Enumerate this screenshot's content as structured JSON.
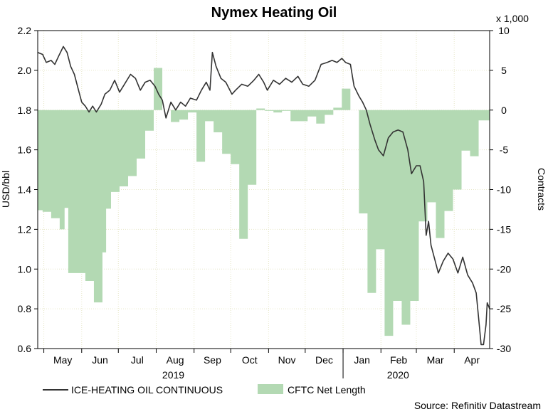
{
  "chart_data": {
    "type": "line+bar",
    "title": "Nymex Heating Oil",
    "multiplier_label": "x 1,000",
    "ylabel_left": "USD/bbl",
    "ylabel_right": "Contracts",
    "ylim_left": [
      0.6,
      2.2
    ],
    "ylim_right": [
      -30,
      10
    ],
    "yticks_left": [
      "0.6",
      "0.8",
      "1.0",
      "1.2",
      "1.4",
      "1.6",
      "1.8",
      "2.0",
      "2.2"
    ],
    "yticks_right": [
      "-30",
      "-25",
      "-20",
      "-15",
      "-10",
      "-5",
      "0",
      "5",
      "10"
    ],
    "x_range": [
      "2019-04-26",
      "2020-04-30"
    ],
    "month_labels": [
      {
        "label": "May",
        "date": "2019-05-01"
      },
      {
        "label": "Jun",
        "date": "2019-06-01"
      },
      {
        "label": "Jul",
        "date": "2019-07-01"
      },
      {
        "label": "Aug",
        "date": "2019-08-01"
      },
      {
        "label": "Sep",
        "date": "2019-09-01"
      },
      {
        "label": "Oct",
        "date": "2019-10-01"
      },
      {
        "label": "Nov",
        "date": "2019-11-01"
      },
      {
        "label": "Dec",
        "date": "2019-12-01"
      },
      {
        "label": "Jan",
        "date": "2020-01-01"
      },
      {
        "label": "Feb",
        "date": "2020-02-01"
      },
      {
        "label": "Mar",
        "date": "2020-03-01"
      },
      {
        "label": "Apr",
        "date": "2020-04-01"
      }
    ],
    "year_labels": [
      {
        "label": "2019",
        "date": "2019-08-15"
      },
      {
        "label": "2020",
        "date": "2020-02-15"
      }
    ],
    "grid": true,
    "legend_position": "bottom",
    "source": "Source: Refinitiv Datastream",
    "series": [
      {
        "name": "CFTC Net Length",
        "type": "area-step",
        "axis": "right",
        "color": "#b3d9b3",
        "points": [
          [
            "2019-04-26",
            -12.6
          ],
          [
            "2019-04-30",
            -12.8
          ],
          [
            "2019-05-07",
            -13.6
          ],
          [
            "2019-05-14",
            -15
          ],
          [
            "2019-05-18",
            -12.3
          ],
          [
            "2019-05-21",
            -20.5
          ],
          [
            "2019-05-28",
            -20.5
          ],
          [
            "2019-06-04",
            -21.5
          ],
          [
            "2019-06-11",
            -24.2
          ],
          [
            "2019-06-18",
            -17.9
          ],
          [
            "2019-06-21",
            -12.4
          ],
          [
            "2019-06-25",
            -10.3
          ],
          [
            "2019-07-02",
            -9.6
          ],
          [
            "2019-07-09",
            -8.3
          ],
          [
            "2019-07-16",
            -6.1
          ],
          [
            "2019-07-23",
            -2.6
          ],
          [
            "2019-07-30",
            5.3
          ],
          [
            "2019-08-06",
            0
          ],
          [
            "2019-08-13",
            -1.5
          ],
          [
            "2019-08-20",
            -1.2
          ],
          [
            "2019-08-27",
            -0.3
          ],
          [
            "2019-09-03",
            -6.5
          ],
          [
            "2019-09-10",
            -1.4
          ],
          [
            "2019-09-17",
            -2.8
          ],
          [
            "2019-09-24",
            -5.5
          ],
          [
            "2019-10-01",
            -6.8
          ],
          [
            "2019-10-08",
            -16.2
          ],
          [
            "2019-10-15",
            -9.4
          ],
          [
            "2019-10-22",
            0.2
          ],
          [
            "2019-10-29",
            -0.1
          ],
          [
            "2019-11-05",
            -0.3
          ],
          [
            "2019-11-12",
            -0.1
          ],
          [
            "2019-11-19",
            -1.4
          ],
          [
            "2019-11-26",
            -1.4
          ],
          [
            "2019-12-03",
            -0.8
          ],
          [
            "2019-12-10",
            -1.7
          ],
          [
            "2019-12-17",
            -0.6
          ],
          [
            "2019-12-24",
            0.3
          ],
          [
            "2019-12-31",
            2.7
          ],
          [
            "2020-01-07",
            0
          ],
          [
            "2020-01-14",
            -13
          ],
          [
            "2020-01-21",
            -23
          ],
          [
            "2020-01-28",
            -17.5
          ],
          [
            "2020-02-04",
            -28.4
          ],
          [
            "2020-02-11",
            -24
          ],
          [
            "2020-02-18",
            -27
          ],
          [
            "2020-02-25",
            -24
          ],
          [
            "2020-03-03",
            -14
          ],
          [
            "2020-03-10",
            -11.6
          ],
          [
            "2020-03-17",
            -16.1
          ],
          [
            "2020-03-24",
            -12.7
          ],
          [
            "2020-03-31",
            -10
          ],
          [
            "2020-04-07",
            -5.1
          ],
          [
            "2020-04-14",
            -5.8
          ],
          [
            "2020-04-21",
            -1.3
          ],
          [
            "2020-04-30",
            -1.3
          ]
        ]
      },
      {
        "name": "ICE-HEATING OIL CONTINUOUS",
        "type": "line",
        "axis": "left",
        "color": "#333333",
        "points": [
          [
            "2019-04-26",
            2.09
          ],
          [
            "2019-04-30",
            2.08
          ],
          [
            "2019-05-03",
            2.04
          ],
          [
            "2019-05-07",
            2.05
          ],
          [
            "2019-05-10",
            2.03
          ],
          [
            "2019-05-13",
            2.07
          ],
          [
            "2019-05-17",
            2.12
          ],
          [
            "2019-05-20",
            2.09
          ],
          [
            "2019-05-23",
            2.02
          ],
          [
            "2019-05-26",
            1.98
          ],
          [
            "2019-05-29",
            1.91
          ],
          [
            "2019-06-01",
            1.84
          ],
          [
            "2019-06-04",
            1.82
          ],
          [
            "2019-06-07",
            1.79
          ],
          [
            "2019-06-10",
            1.82
          ],
          [
            "2019-06-13",
            1.79
          ],
          [
            "2019-06-17",
            1.83
          ],
          [
            "2019-06-20",
            1.88
          ],
          [
            "2019-06-24",
            1.9
          ],
          [
            "2019-06-28",
            1.95
          ],
          [
            "2019-07-02",
            1.89
          ],
          [
            "2019-07-06",
            1.93
          ],
          [
            "2019-07-11",
            1.98
          ],
          [
            "2019-07-15",
            1.96
          ],
          [
            "2019-07-19",
            1.9
          ],
          [
            "2019-07-23",
            1.94
          ],
          [
            "2019-07-27",
            1.95
          ],
          [
            "2019-07-31",
            1.92
          ],
          [
            "2019-08-03",
            1.88
          ],
          [
            "2019-08-06",
            1.85
          ],
          [
            "2019-08-09",
            1.76
          ],
          [
            "2019-08-13",
            1.84
          ],
          [
            "2019-08-17",
            1.8
          ],
          [
            "2019-08-21",
            1.84
          ],
          [
            "2019-08-25",
            1.82
          ],
          [
            "2019-08-29",
            1.86
          ],
          [
            "2019-09-03",
            1.85
          ],
          [
            "2019-09-07",
            1.9
          ],
          [
            "2019-09-11",
            1.94
          ],
          [
            "2019-09-14",
            1.9
          ],
          [
            "2019-09-16",
            2.09
          ],
          [
            "2019-09-19",
            2.02
          ],
          [
            "2019-09-23",
            1.96
          ],
          [
            "2019-09-27",
            1.94
          ],
          [
            "2019-10-02",
            1.88
          ],
          [
            "2019-10-05",
            1.9
          ],
          [
            "2019-10-10",
            1.93
          ],
          [
            "2019-10-15",
            1.92
          ],
          [
            "2019-10-20",
            1.95
          ],
          [
            "2019-10-24",
            1.98
          ],
          [
            "2019-10-28",
            1.94
          ],
          [
            "2019-10-31",
            1.9
          ],
          [
            "2019-11-05",
            1.95
          ],
          [
            "2019-11-10",
            1.93
          ],
          [
            "2019-11-15",
            1.96
          ],
          [
            "2019-11-20",
            1.94
          ],
          [
            "2019-11-25",
            1.97
          ],
          [
            "2019-11-29",
            1.93
          ],
          [
            "2019-12-04",
            1.92
          ],
          [
            "2019-12-09",
            1.95
          ],
          [
            "2019-12-14",
            2.03
          ],
          [
            "2019-12-19",
            2.04
          ],
          [
            "2019-12-23",
            2.05
          ],
          [
            "2019-12-27",
            2.04
          ],
          [
            "2019-12-31",
            2.06
          ],
          [
            "2020-01-03",
            2.04
          ],
          [
            "2020-01-07",
            2.03
          ],
          [
            "2020-01-10",
            1.92
          ],
          [
            "2020-01-14",
            1.87
          ],
          [
            "2020-01-17",
            1.84
          ],
          [
            "2020-01-20",
            1.8
          ],
          [
            "2020-01-23",
            1.73
          ],
          [
            "2020-01-27",
            1.65
          ],
          [
            "2020-01-30",
            1.6
          ],
          [
            "2020-02-03",
            1.57
          ],
          [
            "2020-02-07",
            1.66
          ],
          [
            "2020-02-11",
            1.69
          ],
          [
            "2020-02-15",
            1.7
          ],
          [
            "2020-02-19",
            1.69
          ],
          [
            "2020-02-23",
            1.6
          ],
          [
            "2020-02-26",
            1.48
          ],
          [
            "2020-03-01",
            1.52
          ],
          [
            "2020-03-04",
            1.52
          ],
          [
            "2020-03-07",
            1.44
          ],
          [
            "2020-03-09",
            1.17
          ],
          [
            "2020-03-11",
            1.24
          ],
          [
            "2020-03-13",
            1.12
          ],
          [
            "2020-03-16",
            1.05
          ],
          [
            "2020-03-19",
            0.98
          ],
          [
            "2020-03-23",
            1.04
          ],
          [
            "2020-03-27",
            1.08
          ],
          [
            "2020-03-31",
            1.05
          ],
          [
            "2020-04-04",
            0.98
          ],
          [
            "2020-04-08",
            1.06
          ],
          [
            "2020-04-12",
            0.97
          ],
          [
            "2020-04-16",
            0.93
          ],
          [
            "2020-04-19",
            0.88
          ],
          [
            "2020-04-21",
            0.75
          ],
          [
            "2020-04-23",
            0.62
          ],
          [
            "2020-04-25",
            0.62
          ],
          [
            "2020-04-27",
            0.72
          ],
          [
            "2020-04-28",
            0.83
          ],
          [
            "2020-04-30",
            0.8
          ]
        ]
      }
    ]
  }
}
